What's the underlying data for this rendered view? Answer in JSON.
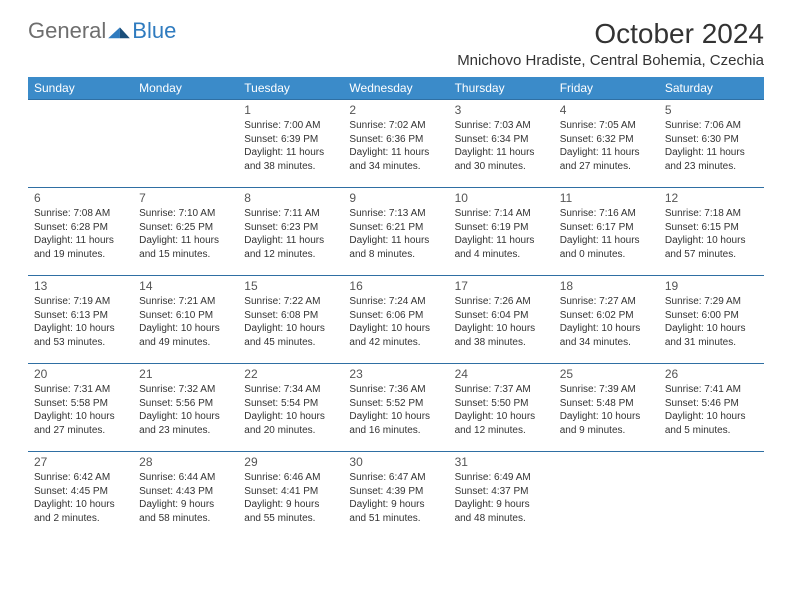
{
  "logo": {
    "general": "General",
    "blue": "Blue"
  },
  "title": "October 2024",
  "location": "Mnichovo Hradiste, Central Bohemia, Czechia",
  "colors": {
    "header_bg": "#3b8bc9",
    "header_text": "#ffffff",
    "border": "#2f6fa3",
    "body_text": "#333333",
    "daynum_text": "#555555",
    "logo_gray": "#6e6e6e",
    "logo_blue": "#2f7bbf",
    "background": "#ffffff"
  },
  "daynames": [
    "Sunday",
    "Monday",
    "Tuesday",
    "Wednesday",
    "Thursday",
    "Friday",
    "Saturday"
  ],
  "weeks": [
    [
      null,
      null,
      {
        "n": "1",
        "sr": "Sunrise: 7:00 AM",
        "ss": "Sunset: 6:39 PM",
        "dl": "Daylight: 11 hours and 38 minutes."
      },
      {
        "n": "2",
        "sr": "Sunrise: 7:02 AM",
        "ss": "Sunset: 6:36 PM",
        "dl": "Daylight: 11 hours and 34 minutes."
      },
      {
        "n": "3",
        "sr": "Sunrise: 7:03 AM",
        "ss": "Sunset: 6:34 PM",
        "dl": "Daylight: 11 hours and 30 minutes."
      },
      {
        "n": "4",
        "sr": "Sunrise: 7:05 AM",
        "ss": "Sunset: 6:32 PM",
        "dl": "Daylight: 11 hours and 27 minutes."
      },
      {
        "n": "5",
        "sr": "Sunrise: 7:06 AM",
        "ss": "Sunset: 6:30 PM",
        "dl": "Daylight: 11 hours and 23 minutes."
      }
    ],
    [
      {
        "n": "6",
        "sr": "Sunrise: 7:08 AM",
        "ss": "Sunset: 6:28 PM",
        "dl": "Daylight: 11 hours and 19 minutes."
      },
      {
        "n": "7",
        "sr": "Sunrise: 7:10 AM",
        "ss": "Sunset: 6:25 PM",
        "dl": "Daylight: 11 hours and 15 minutes."
      },
      {
        "n": "8",
        "sr": "Sunrise: 7:11 AM",
        "ss": "Sunset: 6:23 PM",
        "dl": "Daylight: 11 hours and 12 minutes."
      },
      {
        "n": "9",
        "sr": "Sunrise: 7:13 AM",
        "ss": "Sunset: 6:21 PM",
        "dl": "Daylight: 11 hours and 8 minutes."
      },
      {
        "n": "10",
        "sr": "Sunrise: 7:14 AM",
        "ss": "Sunset: 6:19 PM",
        "dl": "Daylight: 11 hours and 4 minutes."
      },
      {
        "n": "11",
        "sr": "Sunrise: 7:16 AM",
        "ss": "Sunset: 6:17 PM",
        "dl": "Daylight: 11 hours and 0 minutes."
      },
      {
        "n": "12",
        "sr": "Sunrise: 7:18 AM",
        "ss": "Sunset: 6:15 PM",
        "dl": "Daylight: 10 hours and 57 minutes."
      }
    ],
    [
      {
        "n": "13",
        "sr": "Sunrise: 7:19 AM",
        "ss": "Sunset: 6:13 PM",
        "dl": "Daylight: 10 hours and 53 minutes."
      },
      {
        "n": "14",
        "sr": "Sunrise: 7:21 AM",
        "ss": "Sunset: 6:10 PM",
        "dl": "Daylight: 10 hours and 49 minutes."
      },
      {
        "n": "15",
        "sr": "Sunrise: 7:22 AM",
        "ss": "Sunset: 6:08 PM",
        "dl": "Daylight: 10 hours and 45 minutes."
      },
      {
        "n": "16",
        "sr": "Sunrise: 7:24 AM",
        "ss": "Sunset: 6:06 PM",
        "dl": "Daylight: 10 hours and 42 minutes."
      },
      {
        "n": "17",
        "sr": "Sunrise: 7:26 AM",
        "ss": "Sunset: 6:04 PM",
        "dl": "Daylight: 10 hours and 38 minutes."
      },
      {
        "n": "18",
        "sr": "Sunrise: 7:27 AM",
        "ss": "Sunset: 6:02 PM",
        "dl": "Daylight: 10 hours and 34 minutes."
      },
      {
        "n": "19",
        "sr": "Sunrise: 7:29 AM",
        "ss": "Sunset: 6:00 PM",
        "dl": "Daylight: 10 hours and 31 minutes."
      }
    ],
    [
      {
        "n": "20",
        "sr": "Sunrise: 7:31 AM",
        "ss": "Sunset: 5:58 PM",
        "dl": "Daylight: 10 hours and 27 minutes."
      },
      {
        "n": "21",
        "sr": "Sunrise: 7:32 AM",
        "ss": "Sunset: 5:56 PM",
        "dl": "Daylight: 10 hours and 23 minutes."
      },
      {
        "n": "22",
        "sr": "Sunrise: 7:34 AM",
        "ss": "Sunset: 5:54 PM",
        "dl": "Daylight: 10 hours and 20 minutes."
      },
      {
        "n": "23",
        "sr": "Sunrise: 7:36 AM",
        "ss": "Sunset: 5:52 PM",
        "dl": "Daylight: 10 hours and 16 minutes."
      },
      {
        "n": "24",
        "sr": "Sunrise: 7:37 AM",
        "ss": "Sunset: 5:50 PM",
        "dl": "Daylight: 10 hours and 12 minutes."
      },
      {
        "n": "25",
        "sr": "Sunrise: 7:39 AM",
        "ss": "Sunset: 5:48 PM",
        "dl": "Daylight: 10 hours and 9 minutes."
      },
      {
        "n": "26",
        "sr": "Sunrise: 7:41 AM",
        "ss": "Sunset: 5:46 PM",
        "dl": "Daylight: 10 hours and 5 minutes."
      }
    ],
    [
      {
        "n": "27",
        "sr": "Sunrise: 6:42 AM",
        "ss": "Sunset: 4:45 PM",
        "dl": "Daylight: 10 hours and 2 minutes."
      },
      {
        "n": "28",
        "sr": "Sunrise: 6:44 AM",
        "ss": "Sunset: 4:43 PM",
        "dl": "Daylight: 9 hours and 58 minutes."
      },
      {
        "n": "29",
        "sr": "Sunrise: 6:46 AM",
        "ss": "Sunset: 4:41 PM",
        "dl": "Daylight: 9 hours and 55 minutes."
      },
      {
        "n": "30",
        "sr": "Sunrise: 6:47 AM",
        "ss": "Sunset: 4:39 PM",
        "dl": "Daylight: 9 hours and 51 minutes."
      },
      {
        "n": "31",
        "sr": "Sunrise: 6:49 AM",
        "ss": "Sunset: 4:37 PM",
        "dl": "Daylight: 9 hours and 48 minutes."
      },
      null,
      null
    ]
  ]
}
